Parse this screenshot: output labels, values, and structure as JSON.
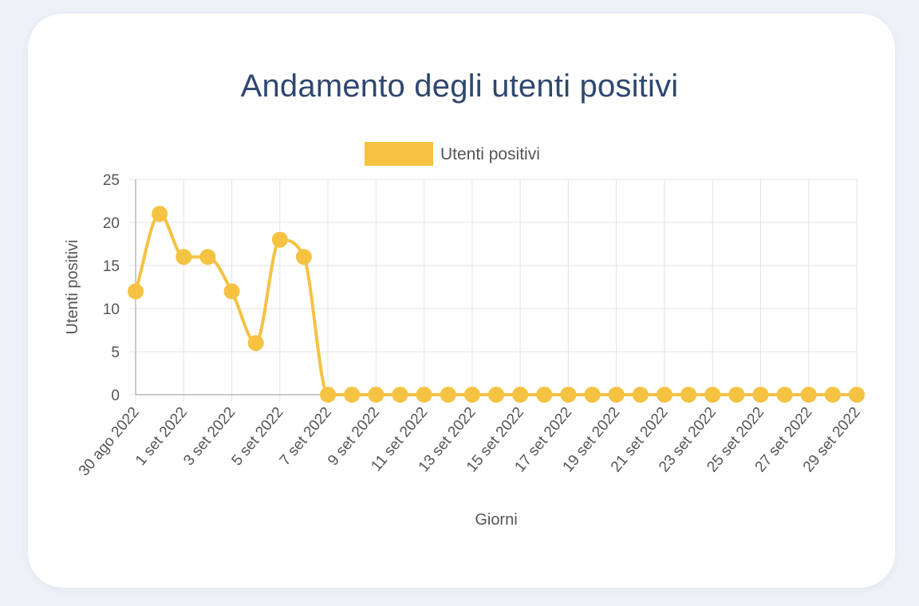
{
  "chart_data": {
    "type": "line",
    "title": "Andamento degli utenti positivi",
    "xlabel": "Giorni",
    "ylabel": "Utenti positivi",
    "ylim": [
      0,
      25
    ],
    "yticks": [
      "0",
      "5",
      "10",
      "15",
      "20",
      "25"
    ],
    "grid": true,
    "legend_position": "top",
    "color": "#f5c242",
    "x": [
      "30 ago 2022",
      "31 ago 2022",
      "1 set 2022",
      "2 set 2022",
      "3 set 2022",
      "4 set 2022",
      "5 set 2022",
      "6 set 2022",
      "7 set 2022",
      "8 set 2022",
      "9 set 2022",
      "10 set 2022",
      "11 set 2022",
      "12 set 2022",
      "13 set 2022",
      "14 set 2022",
      "15 set 2022",
      "16 set 2022",
      "17 set 2022",
      "18 set 2022",
      "19 set 2022",
      "20 set 2022",
      "21 set 2022",
      "22 set 2022",
      "23 set 2022",
      "24 set 2022",
      "25 set 2022",
      "26 set 2022",
      "27 set 2022",
      "28 set 2022",
      "29 set 2022"
    ],
    "xtick_labels": [
      "30 ago 2022",
      "1 set 2022",
      "3 set 2022",
      "5 set 2022",
      "7 set 2022",
      "9 set 2022",
      "11 set 2022",
      "13 set 2022",
      "15 set 2022",
      "17 set 2022",
      "19 set 2022",
      "21 set 2022",
      "23 set 2022",
      "25 set 2022",
      "27 set 2022",
      "29 set 2022"
    ],
    "series": [
      {
        "name": "Utenti positivi",
        "values": [
          12,
          21,
          16,
          16,
          12,
          6,
          18,
          16,
          0,
          0,
          0,
          0,
          0,
          0,
          0,
          0,
          0,
          0,
          0,
          0,
          0,
          0,
          0,
          0,
          0,
          0,
          0,
          0,
          0,
          0,
          0
        ]
      }
    ]
  }
}
